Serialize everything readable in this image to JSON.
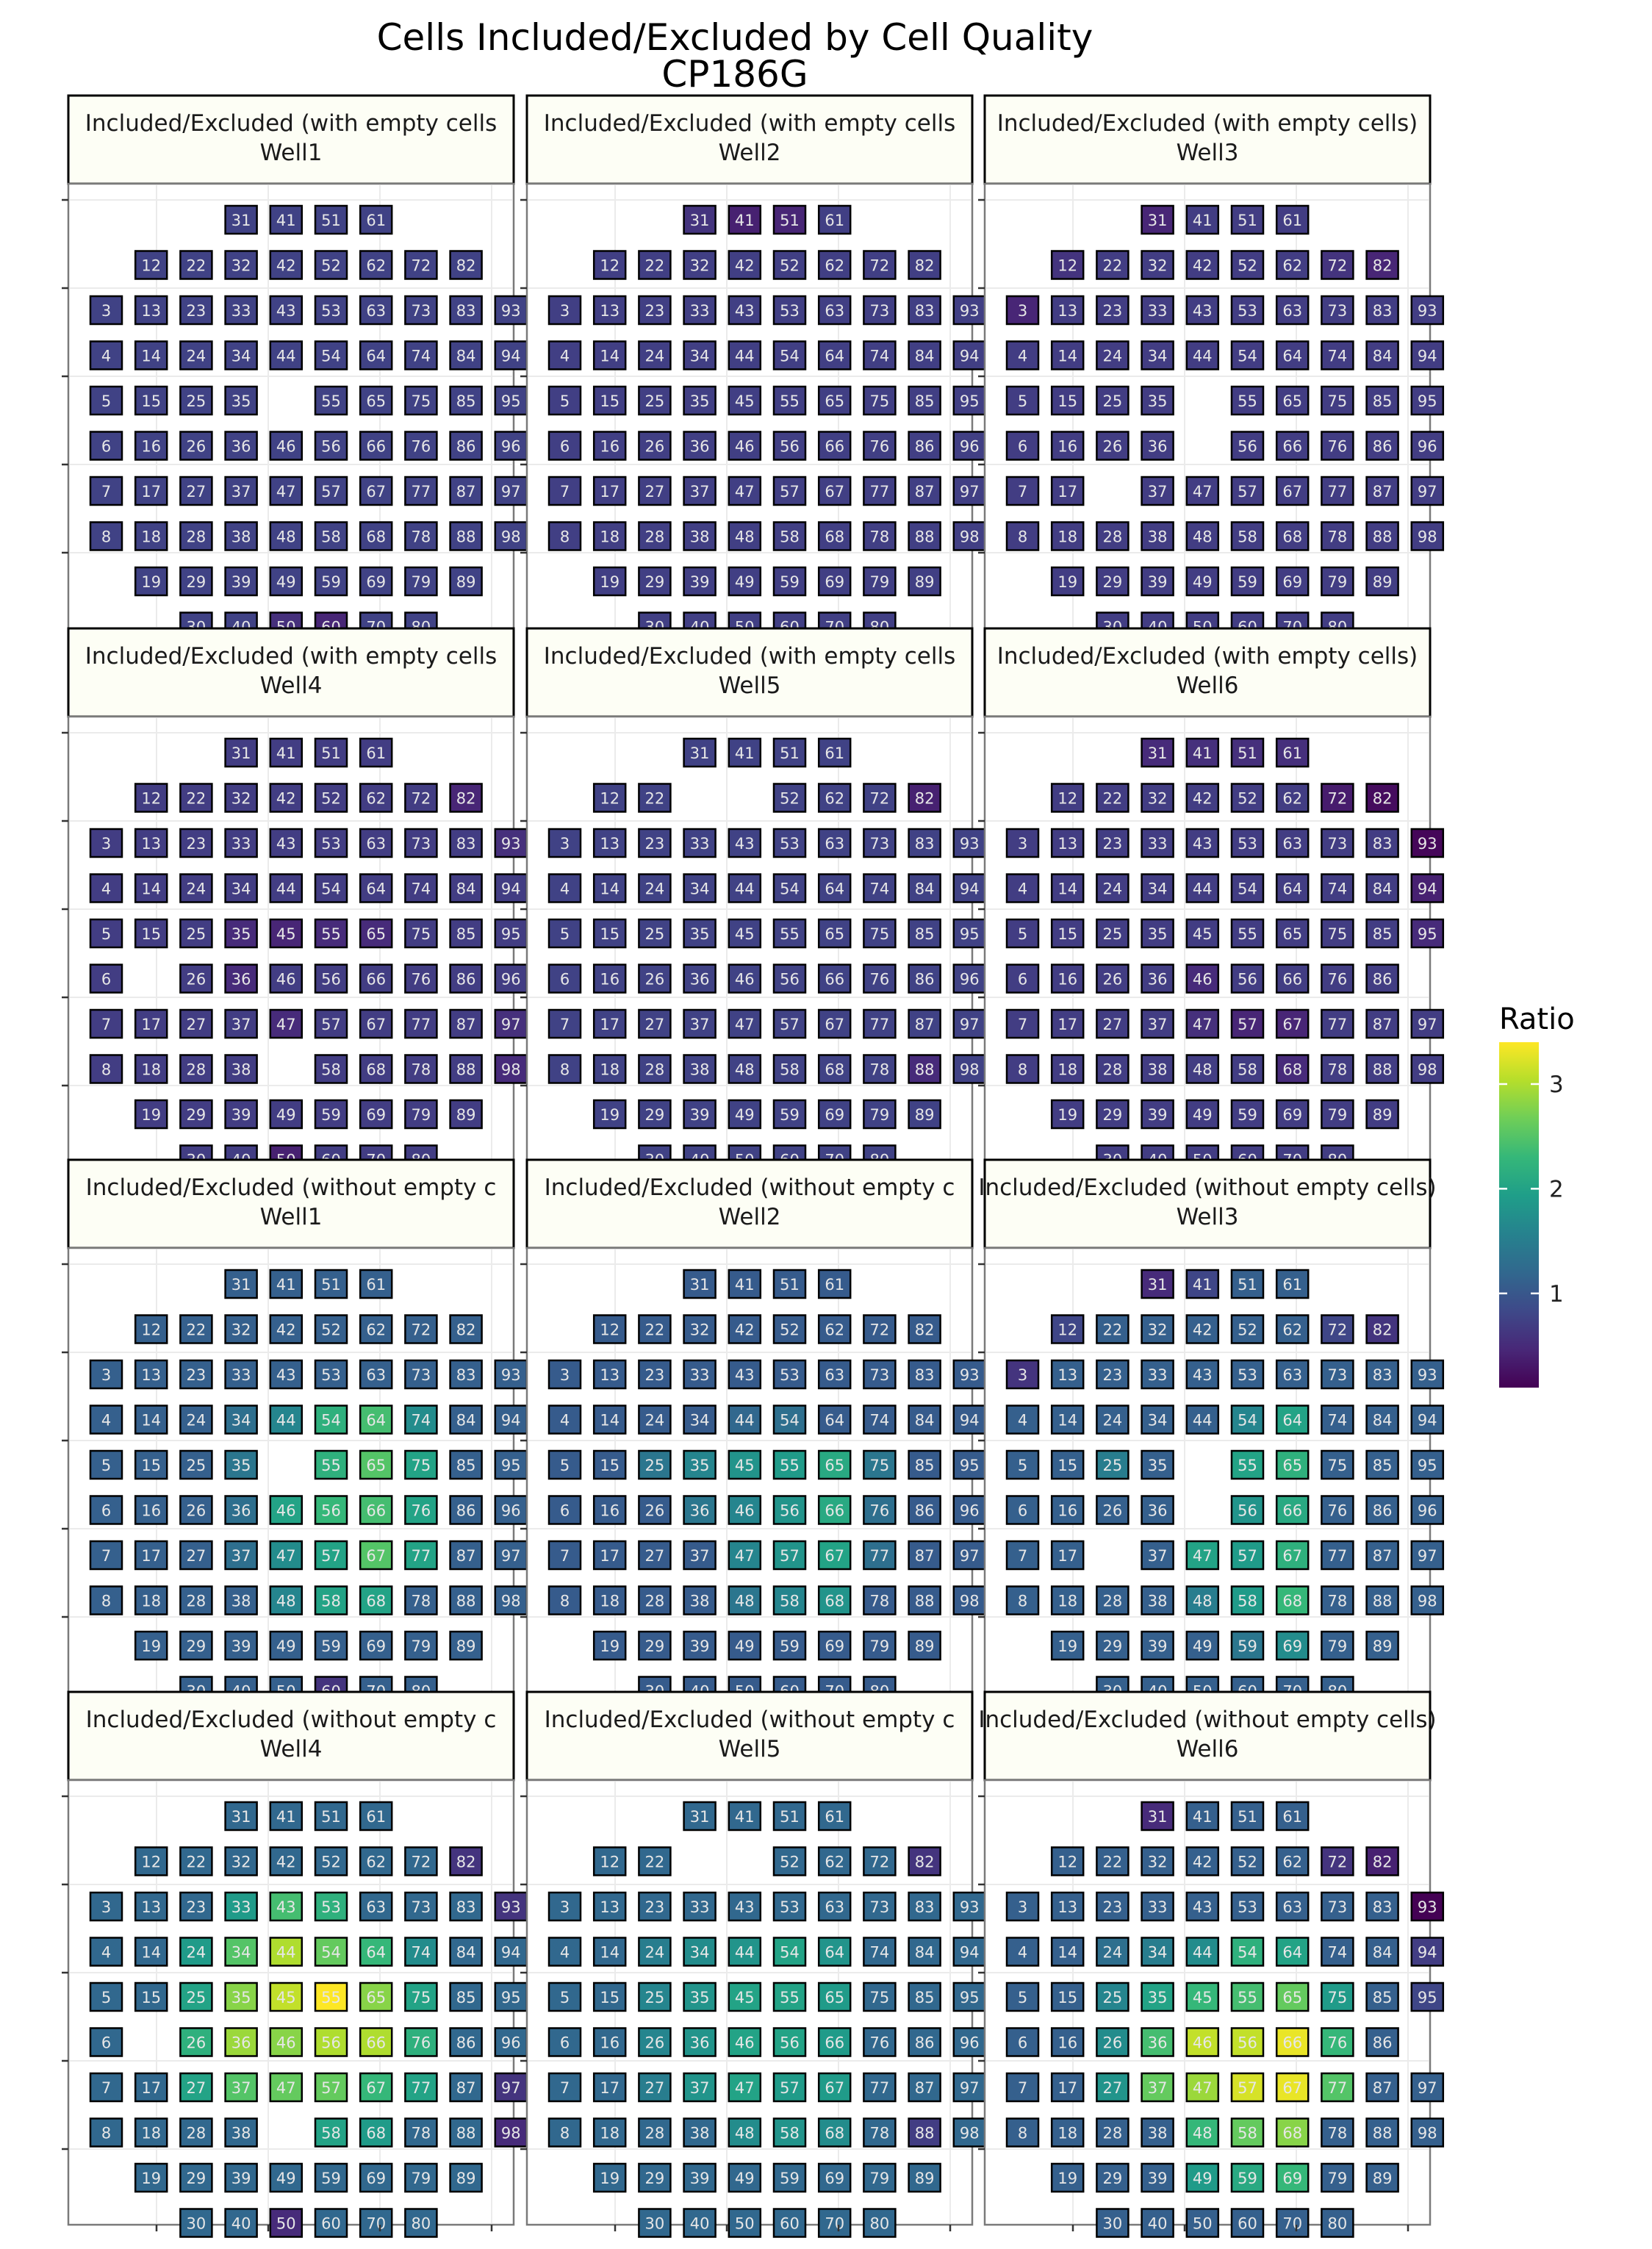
{
  "chart_data": {
    "type": "heatmap",
    "title": "Cells Included/Excluded by Cell Quality",
    "subtitle": "CP186G",
    "legend": {
      "title": "Ratio",
      "position": "right",
      "ticks": [
        1,
        2,
        3
      ],
      "range": [
        0.1,
        3.4
      ],
      "colormap": "viridis"
    },
    "grid": true,
    "cell_layout": [
      [
        31,
        41,
        51,
        61
      ],
      [
        12,
        22,
        32,
        42,
        52,
        62,
        72,
        82
      ],
      [
        3,
        13,
        23,
        33,
        43,
        53,
        63,
        73,
        83,
        93
      ],
      [
        4,
        14,
        24,
        34,
        44,
        54,
        64,
        74,
        84,
        94
      ],
      [
        5,
        15,
        25,
        35,
        45,
        55,
        65,
        75,
        85,
        95
      ],
      [
        6,
        16,
        26,
        36,
        46,
        56,
        66,
        76,
        86,
        96
      ],
      [
        7,
        17,
        27,
        37,
        47,
        57,
        67,
        77,
        87,
        97
      ],
      [
        8,
        18,
        28,
        38,
        48,
        58,
        68,
        78,
        88,
        98
      ],
      [
        19,
        29,
        39,
        49,
        59,
        69,
        79,
        89
      ],
      [
        30,
        40,
        50,
        60,
        70,
        80
      ]
    ],
    "panels": [
      {
        "strip": "Included/Excluded (with empty cells",
        "well": "Well1",
        "base": 0.75,
        "missing": [
          45
        ],
        "values": {
          "60": 0.45,
          "50": 0.55
        }
      },
      {
        "strip": "Included/Excluded (with empty cells",
        "well": "Well2",
        "base": 0.72,
        "missing": [],
        "values": {
          "41": 0.4,
          "51": 0.45,
          "31": 0.6
        }
      },
      {
        "strip": "Included/Excluded (with empty cells)",
        "well": "Well3",
        "base": 0.7,
        "missing": [
          45,
          46,
          27
        ],
        "values": {
          "3": 0.45,
          "31": 0.45,
          "82": 0.45,
          "72": 0.6,
          "12": 0.6
        }
      },
      {
        "strip": "Included/Excluded (with empty cells",
        "well": "Well4",
        "base": 0.7,
        "missing": [
          16,
          48
        ],
        "values": {
          "45": 0.45,
          "35": 0.5,
          "36": 0.5,
          "55": 0.5,
          "65": 0.5,
          "47": 0.5,
          "50": 0.4,
          "82": 0.45,
          "93": 0.55,
          "97": 0.55,
          "98": 0.5
        }
      },
      {
        "strip": "Included/Excluded (with empty cells",
        "well": "Well5",
        "base": 0.75,
        "missing": [
          32,
          42
        ],
        "values": {
          "82": 0.4,
          "88": 0.5
        }
      },
      {
        "strip": "Included/Excluded (with empty cells)",
        "well": "Well6",
        "base": 0.7,
        "missing": [
          96
        ],
        "values": {
          "93": 0.15,
          "82": 0.2,
          "72": 0.35,
          "94": 0.4,
          "95": 0.5,
          "57": 0.45,
          "67": 0.45,
          "68": 0.5,
          "46": 0.5,
          "31": 0.5,
          "41": 0.55,
          "51": 0.55,
          "61": 0.55,
          "47": 0.55
        }
      },
      {
        "strip": "Included/Excluded (without empty c",
        "well": "Well1",
        "base": 1.1,
        "missing": [
          45
        ],
        "values": {
          "44": 1.6,
          "54": 2.2,
          "64": 2.4,
          "74": 1.7,
          "55": 2.2,
          "65": 2.5,
          "75": 2.0,
          "46": 2.0,
          "56": 2.3,
          "66": 2.4,
          "76": 2.0,
          "47": 1.7,
          "57": 2.0,
          "67": 2.5,
          "77": 2.0,
          "48": 1.6,
          "58": 2.0,
          "68": 2.0,
          "60": 0.6,
          "35": 1.4,
          "34": 1.3,
          "36": 1.3,
          "37": 1.3
        }
      },
      {
        "strip": "Included/Excluded (without empty c",
        "well": "Well2",
        "base": 1.05,
        "missing": [],
        "values": {
          "25": 1.4,
          "35": 1.6,
          "45": 1.8,
          "55": 1.9,
          "65": 2.1,
          "36": 1.4,
          "46": 1.6,
          "56": 1.8,
          "66": 2.1,
          "47": 1.6,
          "57": 1.8,
          "67": 2.0,
          "48": 1.4,
          "58": 1.6,
          "68": 1.8,
          "54": 1.3,
          "44": 1.2,
          "75": 1.4,
          "76": 1.3,
          "77": 1.3
        }
      },
      {
        "strip": "Included/Excluded (without empty cells)",
        "well": "Well3",
        "base": 1.1,
        "missing": [
          45,
          46,
          27
        ],
        "values": {
          "31": 0.5,
          "41": 0.8,
          "72": 0.8,
          "82": 0.6,
          "12": 0.8,
          "3": 0.6,
          "54": 1.6,
          "64": 2.0,
          "55": 2.0,
          "65": 2.2,
          "56": 1.8,
          "66": 2.1,
          "47": 2.0,
          "57": 1.9,
          "67": 2.2,
          "58": 1.9,
          "68": 2.3,
          "48": 1.5,
          "69": 1.7,
          "59": 1.4,
          "25": 1.5
        }
      },
      {
        "strip": "Included/Excluded (without empty c",
        "well": "Well4",
        "base": 1.2,
        "missing": [
          16,
          48
        ],
        "values": {
          "24": 1.9,
          "34": 2.5,
          "44": 3.0,
          "54": 2.6,
          "64": 2.3,
          "74": 1.7,
          "25": 2.0,
          "35": 2.8,
          "45": 3.1,
          "55": 3.4,
          "65": 2.8,
          "75": 2.0,
          "26": 2.2,
          "36": 2.9,
          "46": 2.8,
          "56": 3.0,
          "66": 3.0,
          "76": 2.2,
          "27": 2.0,
          "37": 2.5,
          "47": 2.6,
          "57": 2.6,
          "67": 2.3,
          "77": 2.0,
          "43": 2.4,
          "53": 2.2,
          "33": 1.9,
          "50": 0.5,
          "93": 0.6,
          "97": 0.6,
          "98": 0.5,
          "82": 0.6,
          "58": 2.0,
          "68": 1.9
        }
      },
      {
        "strip": "Included/Excluded (without empty c",
        "well": "Well5",
        "base": 1.2,
        "missing": [
          32,
          42
        ],
        "values": {
          "82": 0.6,
          "88": 0.7,
          "24": 1.5,
          "34": 1.7,
          "44": 1.8,
          "54": 2.0,
          "64": 1.8,
          "25": 1.6,
          "35": 1.8,
          "45": 2.0,
          "55": 2.0,
          "65": 1.9,
          "26": 1.6,
          "36": 1.8,
          "46": 2.0,
          "56": 2.0,
          "66": 1.9,
          "27": 1.5,
          "37": 1.8,
          "47": 2.0,
          "57": 1.9,
          "67": 1.9,
          "48": 1.7,
          "58": 1.8,
          "68": 1.7
        }
      },
      {
        "strip": "Included/Excluded (without empty cells)",
        "well": "Well6",
        "base": 1.1,
        "missing": [
          96
        ],
        "values": {
          "93": 0.1,
          "82": 0.4,
          "72": 0.6,
          "31": 0.5,
          "94": 0.7,
          "95": 0.8,
          "25": 1.6,
          "35": 2.0,
          "45": 2.3,
          "55": 2.4,
          "65": 2.6,
          "75": 1.9,
          "26": 1.7,
          "36": 2.4,
          "46": 3.1,
          "56": 3.1,
          "66": 3.3,
          "76": 2.3,
          "27": 1.8,
          "37": 2.6,
          "47": 2.9,
          "57": 3.2,
          "67": 3.3,
          "77": 2.5,
          "48": 2.3,
          "58": 2.6,
          "68": 2.8,
          "49": 1.9,
          "59": 2.1,
          "69": 2.3,
          "44": 1.7,
          "54": 2.2,
          "64": 2.0,
          "34": 1.5,
          "24": 1.3
        }
      }
    ]
  }
}
